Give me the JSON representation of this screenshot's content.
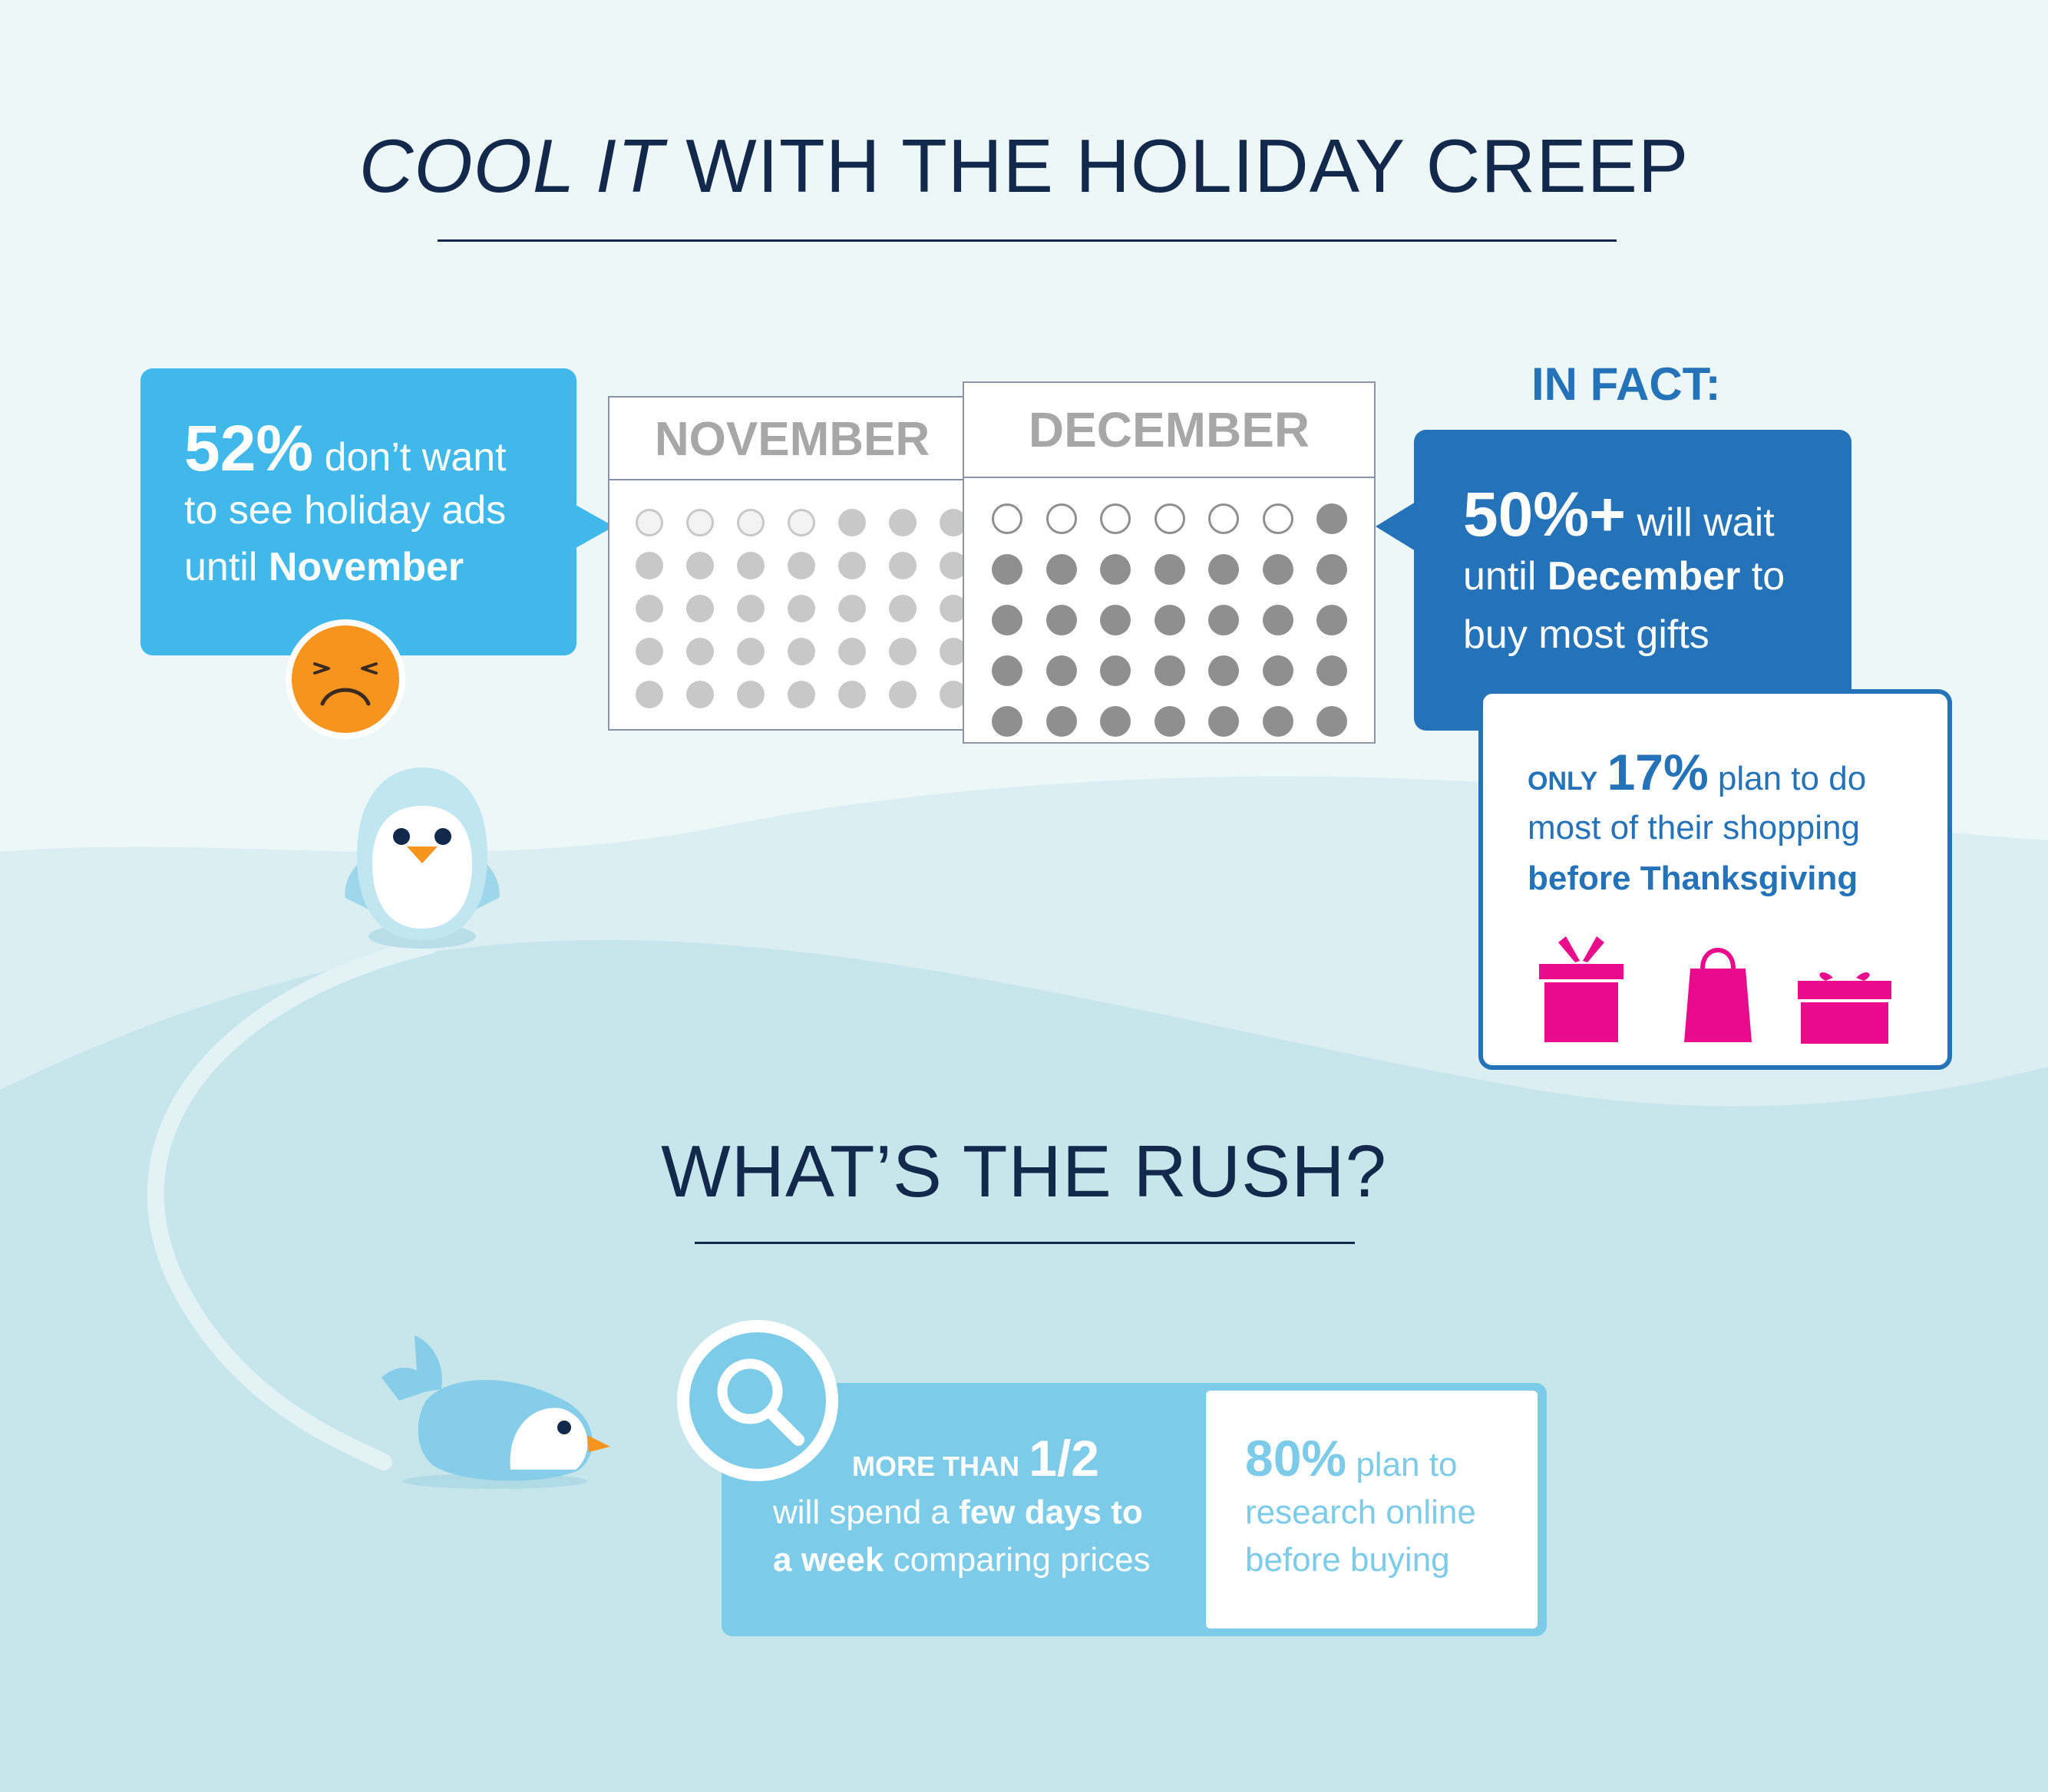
{
  "colors": {
    "navy": "#13294b",
    "sky_blue": "#41b8ea",
    "royal_blue": "#2473b8",
    "light_blue": "#7ccbe9",
    "magenta": "#ea0b8c",
    "orange": "#f7941d",
    "grey_dot": "#a7a7a7",
    "grey_dot_light": "#c8c8c8",
    "grey_dot_dark": "#8f8f8f"
  },
  "section1": {
    "title_em": "COOL IT",
    "title_rest": " WITH THE HOLIDAY CREEP"
  },
  "callout_ads": {
    "stat": "52%",
    "line1_rest": " don’t want",
    "line2": "to see holiday ads",
    "line3_prefix": "until ",
    "line3_bold": "November"
  },
  "calendars": {
    "november": {
      "label": "NOVEMBER",
      "outlined_days": 4,
      "total_days": 35
    },
    "december": {
      "label": "DECEMBER",
      "outlined_days": 6,
      "total_days": 35
    }
  },
  "in_fact": {
    "label": "IN FACT:",
    "stat": "50%+",
    "line1_rest": " will wait",
    "line2_prefix": "until ",
    "line2_bold": "December",
    "line2_rest": " to",
    "line3": "buy most gifts"
  },
  "only_box": {
    "prefix": "ONLY",
    "stat": "17%",
    "line1_rest": " plan to do",
    "line2": "most of their shopping",
    "line3": "before Thanksgiving",
    "icons": [
      "gift-box-icon",
      "shopping-bag-icon",
      "present-icon"
    ]
  },
  "section2": {
    "title": "WHAT’S THE RUSH?"
  },
  "research": {
    "label_small": "MORE THAN",
    "stat": "1/2",
    "line2_prefix": "will spend a ",
    "line2_bold": "few days to",
    "line3_bold": "a week",
    "line3_rest": " comparing prices",
    "icon": "magnifying-glass-icon"
  },
  "online": {
    "stat": "80%",
    "line1_rest": " plan to",
    "line2": "research online",
    "line3": "before buying"
  }
}
